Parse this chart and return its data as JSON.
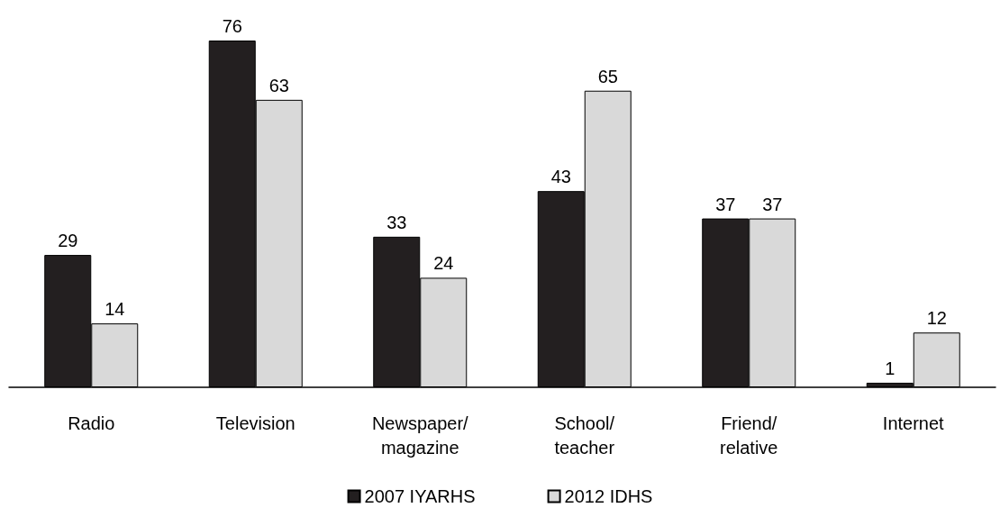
{
  "chart_data": {
    "type": "bar",
    "categories": [
      "Radio",
      "Television",
      "Newspaper/magazine",
      "School/teacher",
      "Friend/relative",
      "Internet"
    ],
    "series": [
      {
        "name": "2007 IYARHS",
        "color": "#231f20",
        "values": [
          29,
          76,
          33,
          43,
          37,
          1
        ]
      },
      {
        "name": "2012 IDHS",
        "color": "#d9d9d9",
        "values": [
          14,
          63,
          24,
          65,
          37,
          12
        ]
      }
    ],
    "data_labels": true,
    "legend": "bottom",
    "grid": false
  }
}
